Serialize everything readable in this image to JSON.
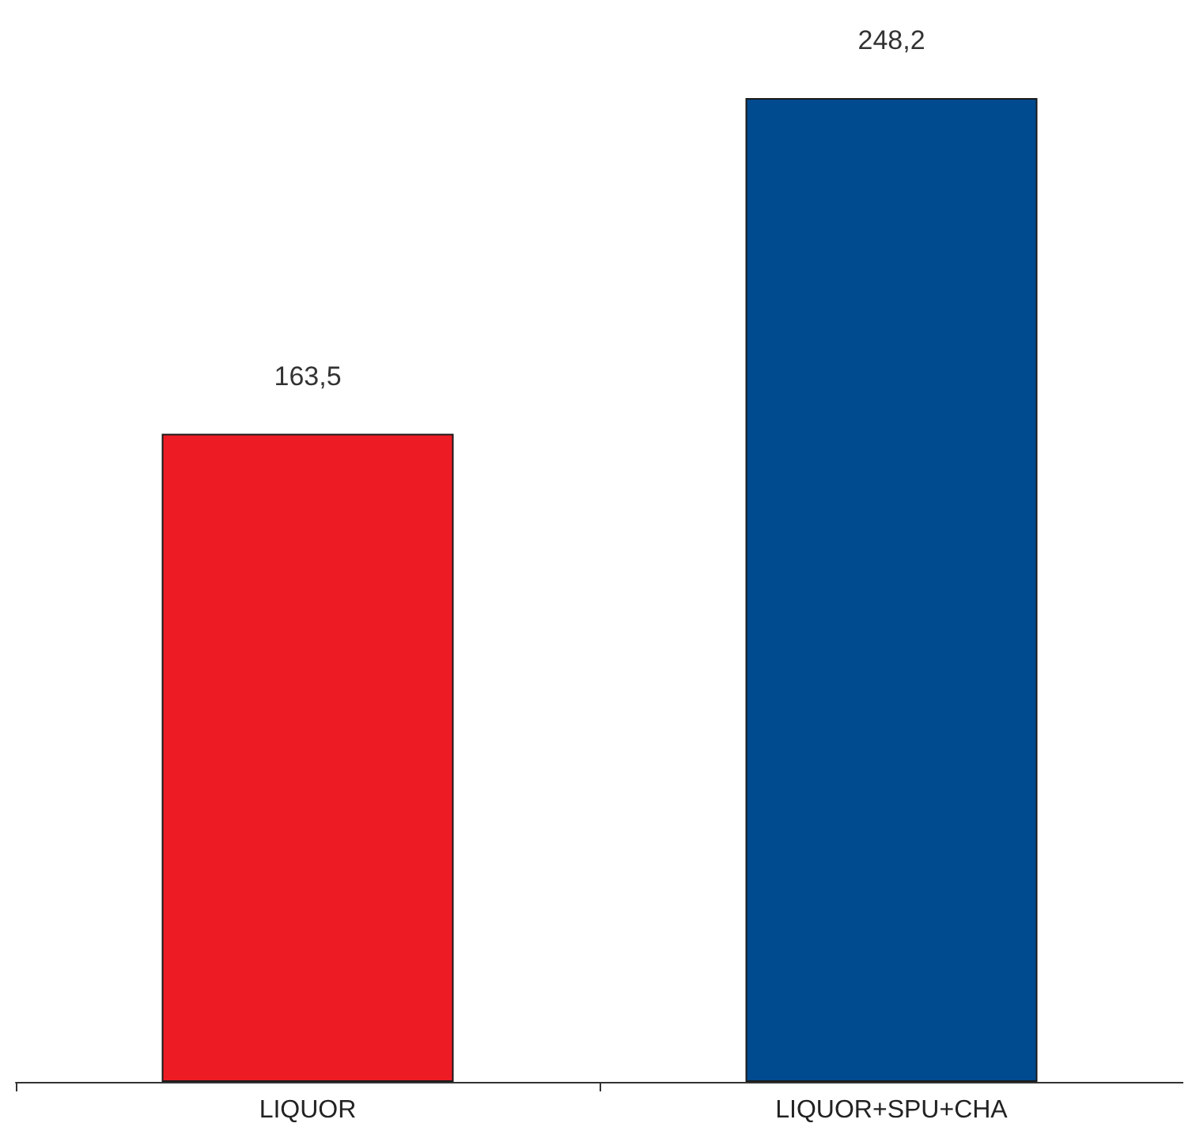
{
  "chart_data": {
    "type": "bar",
    "categories": [
      "LIQUOR",
      "LIQUOR+SPU+CHA"
    ],
    "values": [
      163.5,
      248.2
    ],
    "colors": [
      "#ed1c24",
      "#004a8f"
    ],
    "value_labels": [
      "163,5",
      "248,2"
    ]
  }
}
